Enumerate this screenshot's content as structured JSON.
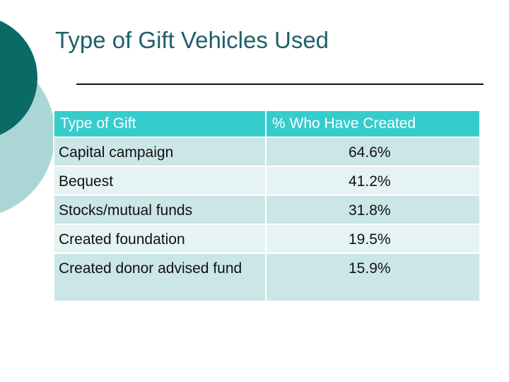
{
  "slide": {
    "title": "Type of Gift Vehicles Used"
  },
  "table": {
    "headers": [
      "Type of Gift",
      "% Who Have Created"
    ],
    "rows": [
      {
        "type": "Capital campaign",
        "percent": "64.6%"
      },
      {
        "type": "Bequest",
        "percent": "41.2%"
      },
      {
        "type": "Stocks/mutual funds",
        "percent": "31.8%"
      },
      {
        "type": "Created foundation",
        "percent": "19.5%"
      },
      {
        "type": "Created donor advised fund",
        "percent": "15.9%"
      }
    ]
  },
  "colors": {
    "header_bg": "#35cccc",
    "row_odd": "#cbe6e7",
    "row_even": "#e6f3f3",
    "dark_teal": "#0a6a65",
    "light_teal": "#aad6d6",
    "title": "#1f5f6a"
  }
}
